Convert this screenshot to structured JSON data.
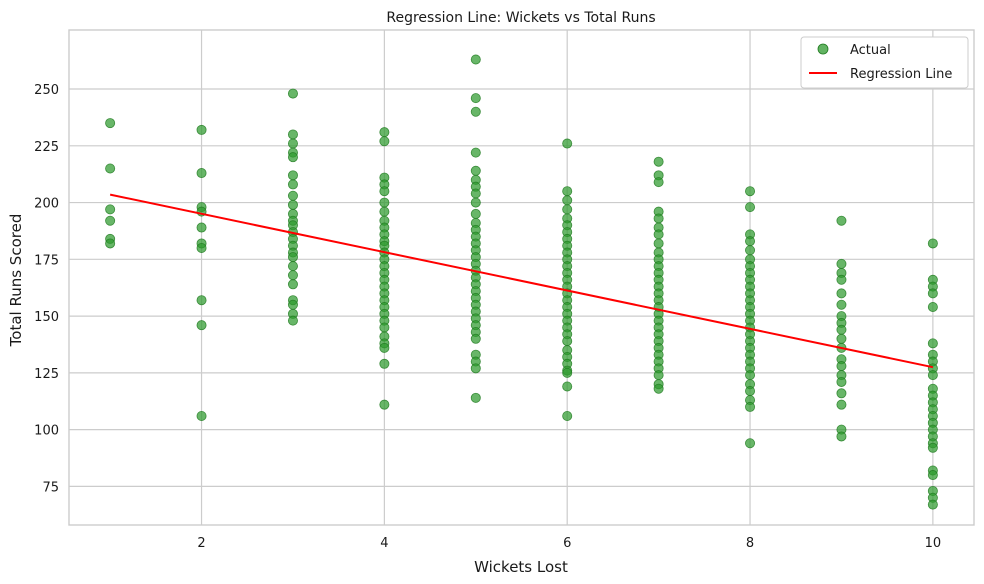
{
  "chart_data": {
    "type": "scatter",
    "title": "Regression Line: Wickets vs Total Runs",
    "xlabel": "Wickets Lost",
    "ylabel": "Total Runs Scored",
    "xlim": [
      0.55,
      10.45
    ],
    "ylim": [
      58,
      276
    ],
    "xticks": [
      2,
      4,
      6,
      8,
      10
    ],
    "yticks": [
      75,
      100,
      125,
      150,
      175,
      200,
      225,
      250
    ],
    "grid": true,
    "legend_position": "top-right",
    "series": [
      {
        "name": "Actual",
        "kind": "scatter",
        "color": "#2e9a2e",
        "points": [
          [
            1,
            235
          ],
          [
            1,
            215
          ],
          [
            1,
            197
          ],
          [
            1,
            192
          ],
          [
            1,
            184
          ],
          [
            1,
            182
          ],
          [
            2,
            232
          ],
          [
            2,
            213
          ],
          [
            2,
            198
          ],
          [
            2,
            196
          ],
          [
            2,
            189
          ],
          [
            2,
            182
          ],
          [
            2,
            180
          ],
          [
            2,
            157
          ],
          [
            2,
            146
          ],
          [
            2,
            106
          ],
          [
            3,
            248
          ],
          [
            3,
            230
          ],
          [
            3,
            226
          ],
          [
            3,
            222
          ],
          [
            3,
            220
          ],
          [
            3,
            212
          ],
          [
            3,
            208
          ],
          [
            3,
            203
          ],
          [
            3,
            199
          ],
          [
            3,
            195
          ],
          [
            3,
            192
          ],
          [
            3,
            190
          ],
          [
            3,
            187
          ],
          [
            3,
            184
          ],
          [
            3,
            181
          ],
          [
            3,
            178
          ],
          [
            3,
            176
          ],
          [
            3,
            172
          ],
          [
            3,
            168
          ],
          [
            3,
            164
          ],
          [
            3,
            157
          ],
          [
            3,
            155
          ],
          [
            3,
            151
          ],
          [
            3,
            148
          ],
          [
            4,
            231
          ],
          [
            4,
            227
          ],
          [
            4,
            211
          ],
          [
            4,
            208
          ],
          [
            4,
            205
          ],
          [
            4,
            200
          ],
          [
            4,
            196
          ],
          [
            4,
            192
          ],
          [
            4,
            189
          ],
          [
            4,
            186
          ],
          [
            4,
            183
          ],
          [
            4,
            181
          ],
          [
            4,
            178
          ],
          [
            4,
            175
          ],
          [
            4,
            172
          ],
          [
            4,
            169
          ],
          [
            4,
            166
          ],
          [
            4,
            163
          ],
          [
            4,
            160
          ],
          [
            4,
            157
          ],
          [
            4,
            154
          ],
          [
            4,
            151
          ],
          [
            4,
            148
          ],
          [
            4,
            145
          ],
          [
            4,
            141
          ],
          [
            4,
            138
          ],
          [
            4,
            136
          ],
          [
            4,
            129
          ],
          [
            4,
            111
          ],
          [
            5,
            263
          ],
          [
            5,
            246
          ],
          [
            5,
            240
          ],
          [
            5,
            222
          ],
          [
            5,
            214
          ],
          [
            5,
            210
          ],
          [
            5,
            207
          ],
          [
            5,
            204
          ],
          [
            5,
            200
          ],
          [
            5,
            195
          ],
          [
            5,
            191
          ],
          [
            5,
            188
          ],
          [
            5,
            185
          ],
          [
            5,
            182
          ],
          [
            5,
            179
          ],
          [
            5,
            176
          ],
          [
            5,
            173
          ],
          [
            5,
            170
          ],
          [
            5,
            167
          ],
          [
            5,
            164
          ],
          [
            5,
            161
          ],
          [
            5,
            158
          ],
          [
            5,
            155
          ],
          [
            5,
            152
          ],
          [
            5,
            149
          ],
          [
            5,
            146
          ],
          [
            5,
            143
          ],
          [
            5,
            140
          ],
          [
            5,
            133
          ],
          [
            5,
            130
          ],
          [
            5,
            127
          ],
          [
            5,
            114
          ],
          [
            6,
            226
          ],
          [
            6,
            205
          ],
          [
            6,
            201
          ],
          [
            6,
            197
          ],
          [
            6,
            193
          ],
          [
            6,
            190
          ],
          [
            6,
            187
          ],
          [
            6,
            184
          ],
          [
            6,
            181
          ],
          [
            6,
            178
          ],
          [
            6,
            175
          ],
          [
            6,
            172
          ],
          [
            6,
            169
          ],
          [
            6,
            166
          ],
          [
            6,
            163
          ],
          [
            6,
            160
          ],
          [
            6,
            157
          ],
          [
            6,
            154
          ],
          [
            6,
            151
          ],
          [
            6,
            148
          ],
          [
            6,
            145
          ],
          [
            6,
            142
          ],
          [
            6,
            139
          ],
          [
            6,
            135
          ],
          [
            6,
            132
          ],
          [
            6,
            129
          ],
          [
            6,
            126
          ],
          [
            6,
            125
          ],
          [
            6,
            119
          ],
          [
            6,
            106
          ],
          [
            7,
            218
          ],
          [
            7,
            212
          ],
          [
            7,
            209
          ],
          [
            7,
            196
          ],
          [
            7,
            193
          ],
          [
            7,
            189
          ],
          [
            7,
            186
          ],
          [
            7,
            182
          ],
          [
            7,
            178
          ],
          [
            7,
            175
          ],
          [
            7,
            172
          ],
          [
            7,
            169
          ],
          [
            7,
            166
          ],
          [
            7,
            163
          ],
          [
            7,
            160
          ],
          [
            7,
            157
          ],
          [
            7,
            154
          ],
          [
            7,
            151
          ],
          [
            7,
            148
          ],
          [
            7,
            145
          ],
          [
            7,
            142
          ],
          [
            7,
            139
          ],
          [
            7,
            136
          ],
          [
            7,
            133
          ],
          [
            7,
            130
          ],
          [
            7,
            127
          ],
          [
            7,
            124
          ],
          [
            7,
            120
          ],
          [
            7,
            118
          ],
          [
            8,
            205
          ],
          [
            8,
            198
          ],
          [
            8,
            186
          ],
          [
            8,
            183
          ],
          [
            8,
            179
          ],
          [
            8,
            175
          ],
          [
            8,
            172
          ],
          [
            8,
            169
          ],
          [
            8,
            166
          ],
          [
            8,
            163
          ],
          [
            8,
            160
          ],
          [
            8,
            157
          ],
          [
            8,
            154
          ],
          [
            8,
            151
          ],
          [
            8,
            148
          ],
          [
            8,
            145
          ],
          [
            8,
            142
          ],
          [
            8,
            139
          ],
          [
            8,
            136
          ],
          [
            8,
            133
          ],
          [
            8,
            130
          ],
          [
            8,
            127
          ],
          [
            8,
            124
          ],
          [
            8,
            120
          ],
          [
            8,
            117
          ],
          [
            8,
            113
          ],
          [
            8,
            110
          ],
          [
            8,
            94
          ],
          [
            9,
            192
          ],
          [
            9,
            173
          ],
          [
            9,
            169
          ],
          [
            9,
            166
          ],
          [
            9,
            160
          ],
          [
            9,
            155
          ],
          [
            9,
            150
          ],
          [
            9,
            147
          ],
          [
            9,
            144
          ],
          [
            9,
            140
          ],
          [
            9,
            136
          ],
          [
            9,
            131
          ],
          [
            9,
            128
          ],
          [
            9,
            124
          ],
          [
            9,
            121
          ],
          [
            9,
            116
          ],
          [
            9,
            111
          ],
          [
            9,
            100
          ],
          [
            9,
            97
          ],
          [
            10,
            182
          ],
          [
            10,
            166
          ],
          [
            10,
            163
          ],
          [
            10,
            160
          ],
          [
            10,
            154
          ],
          [
            10,
            138
          ],
          [
            10,
            133
          ],
          [
            10,
            130
          ],
          [
            10,
            127
          ],
          [
            10,
            124
          ],
          [
            10,
            118
          ],
          [
            10,
            115
          ],
          [
            10,
            112
          ],
          [
            10,
            109
          ],
          [
            10,
            106
          ],
          [
            10,
            103
          ],
          [
            10,
            100
          ],
          [
            10,
            97
          ],
          [
            10,
            94
          ],
          [
            10,
            92
          ],
          [
            10,
            82
          ],
          [
            10,
            80
          ],
          [
            10,
            73
          ],
          [
            10,
            70
          ],
          [
            10,
            67
          ]
        ]
      },
      {
        "name": "Regression Line",
        "kind": "line",
        "color": "#ff0000",
        "points": [
          [
            1,
            203.5
          ],
          [
            10,
            127.5
          ]
        ]
      }
    ]
  }
}
